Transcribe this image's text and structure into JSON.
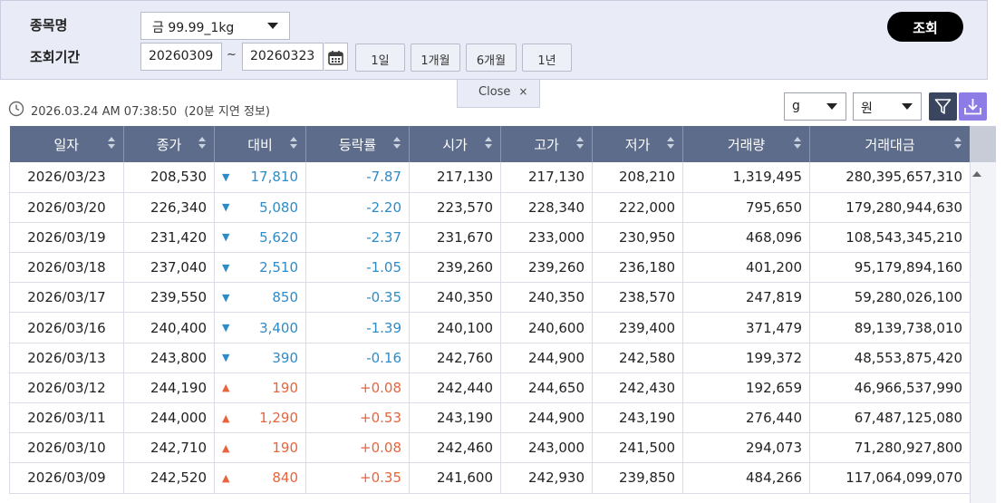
{
  "search": {
    "item_label": "종목명",
    "period_label": "조회기간",
    "item_value": "금 99.99_1kg",
    "date_from": "20260309",
    "date_separator": "~",
    "date_to": "20260323",
    "period_buttons": [
      "1일",
      "1개월",
      "6개월",
      "1년"
    ],
    "query_button": "조회",
    "close_label": "Close",
    "close_x": "×"
  },
  "info": {
    "timestamp": "2026.03.24 AM 07:38:50",
    "delay_note": "(20분 지연 정보)",
    "unit_weight": "g",
    "unit_currency": "원"
  },
  "colors": {
    "down": "#2d8cc8",
    "up": "#e8643c",
    "header_bg": "#5d6c8a",
    "panel_bg": "#e9ecf7"
  },
  "table": {
    "headers": [
      "일자",
      "종가",
      "대비",
      "등락률",
      "시가",
      "고가",
      "저가",
      "거래량",
      "거래대금"
    ],
    "rows": [
      {
        "date": "2026/03/23",
        "close": "208,530",
        "dir": "down",
        "arrow": "▼",
        "change": "17,810",
        "rate": "-7.87",
        "open": "217,130",
        "high": "217,130",
        "low": "208,210",
        "volume": "1,319,495",
        "amount": "280,395,657,310"
      },
      {
        "date": "2026/03/20",
        "close": "226,340",
        "dir": "down",
        "arrow": "▼",
        "change": "5,080",
        "rate": "-2.20",
        "open": "223,570",
        "high": "228,340",
        "low": "222,000",
        "volume": "795,650",
        "amount": "179,280,944,630"
      },
      {
        "date": "2026/03/19",
        "close": "231,420",
        "dir": "down",
        "arrow": "▼",
        "change": "5,620",
        "rate": "-2.37",
        "open": "231,670",
        "high": "233,000",
        "low": "230,950",
        "volume": "468,096",
        "amount": "108,543,345,210"
      },
      {
        "date": "2026/03/18",
        "close": "237,040",
        "dir": "down",
        "arrow": "▼",
        "change": "2,510",
        "rate": "-1.05",
        "open": "239,260",
        "high": "239,260",
        "low": "236,180",
        "volume": "401,200",
        "amount": "95,179,894,160"
      },
      {
        "date": "2026/03/17",
        "close": "239,550",
        "dir": "down",
        "arrow": "▼",
        "change": "850",
        "rate": "-0.35",
        "open": "240,350",
        "high": "240,350",
        "low": "238,570",
        "volume": "247,819",
        "amount": "59,280,026,100"
      },
      {
        "date": "2026/03/16",
        "close": "240,400",
        "dir": "down",
        "arrow": "▼",
        "change": "3,400",
        "rate": "-1.39",
        "open": "240,100",
        "high": "240,600",
        "low": "239,400",
        "volume": "371,479",
        "amount": "89,139,738,010"
      },
      {
        "date": "2026/03/13",
        "close": "243,800",
        "dir": "down",
        "arrow": "▼",
        "change": "390",
        "rate": "-0.16",
        "open": "242,760",
        "high": "244,900",
        "low": "242,580",
        "volume": "199,372",
        "amount": "48,553,875,420"
      },
      {
        "date": "2026/03/12",
        "close": "244,190",
        "dir": "up",
        "arrow": "▲",
        "change": "190",
        "rate": "+0.08",
        "open": "242,440",
        "high": "244,650",
        "low": "242,430",
        "volume": "192,659",
        "amount": "46,966,537,990"
      },
      {
        "date": "2026/03/11",
        "close": "244,000",
        "dir": "up",
        "arrow": "▲",
        "change": "1,290",
        "rate": "+0.53",
        "open": "243,190",
        "high": "244,900",
        "low": "243,190",
        "volume": "276,440",
        "amount": "67,487,125,080"
      },
      {
        "date": "2026/03/10",
        "close": "242,710",
        "dir": "up",
        "arrow": "▲",
        "change": "190",
        "rate": "+0.08",
        "open": "242,460",
        "high": "243,000",
        "low": "241,500",
        "volume": "294,073",
        "amount": "71,280,927,800"
      },
      {
        "date": "2026/03/09",
        "close": "242,520",
        "dir": "up",
        "arrow": "▲",
        "change": "840",
        "rate": "+0.35",
        "open": "241,600",
        "high": "242,930",
        "low": "239,850",
        "volume": "484,266",
        "amount": "117,064,099,070"
      }
    ]
  }
}
